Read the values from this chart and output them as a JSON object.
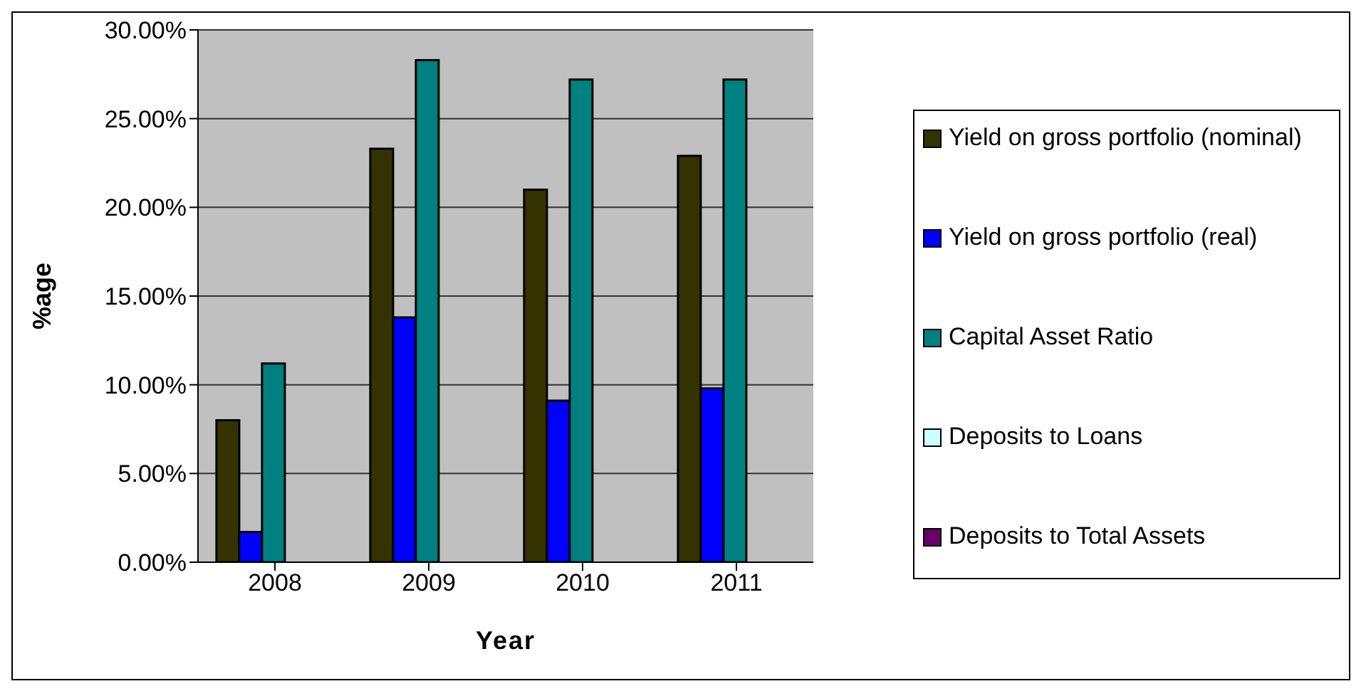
{
  "chart_data": {
    "type": "bar",
    "xlabel": "Year",
    "ylabel": "%age",
    "categories": [
      "2008",
      "2009",
      "2010",
      "2011"
    ],
    "series": [
      {
        "name": "Yield on gross portfolio (nominal)",
        "color": "#333300",
        "values": [
          8.0,
          23.3,
          21.0,
          22.9
        ]
      },
      {
        "name": "Yield on gross portfolio (real)",
        "color": "#0000ff",
        "values": [
          1.7,
          13.8,
          9.1,
          9.8
        ]
      },
      {
        "name": "Capital Asset Ratio",
        "color": "#008080",
        "values": [
          11.2,
          28.3,
          27.2,
          27.2
        ]
      },
      {
        "name": "Deposits to Loans",
        "color": "#ccffff",
        "values": [
          null,
          null,
          null,
          null
        ]
      },
      {
        "name": "Deposits to Total Assets",
        "color": "#660066",
        "values": [
          null,
          null,
          null,
          null
        ]
      }
    ],
    "ylim": [
      0,
      30
    ],
    "yticks": [
      {
        "value": 0,
        "label": "0.00%"
      },
      {
        "value": 5,
        "label": "5.00%"
      },
      {
        "value": 10,
        "label": "10.00%"
      },
      {
        "value": 15,
        "label": "15.00%"
      },
      {
        "value": 20,
        "label": "20.00%"
      },
      {
        "value": 25,
        "label": "25.00%"
      },
      {
        "value": 30,
        "label": "30.00%"
      }
    ],
    "grid": "y",
    "legend": "right"
  }
}
